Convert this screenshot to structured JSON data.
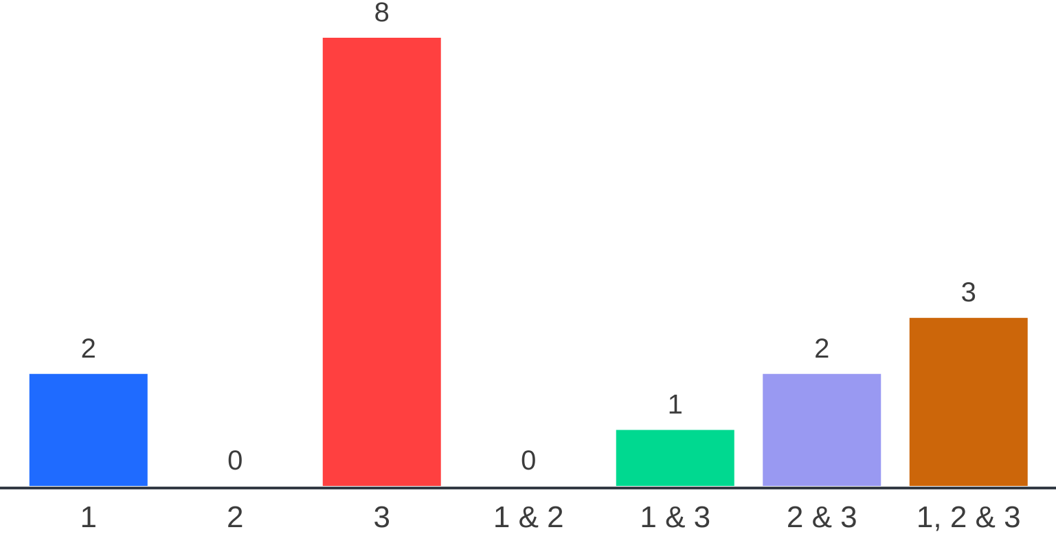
{
  "chart_data": {
    "type": "bar",
    "categories": [
      "1",
      "2",
      "3",
      "1 & 2",
      "1 & 3",
      "2 & 3",
      "1, 2 & 3"
    ],
    "values": [
      2,
      0,
      8,
      0,
      1,
      2,
      3
    ],
    "colors": [
      "#1f6bff",
      "#00b050",
      "#ff4040",
      "#ffbf00",
      "#00d990",
      "#9999f2",
      "#cc660a"
    ],
    "title": "",
    "xlabel": "",
    "ylabel": "",
    "ylim": [
      0,
      8
    ],
    "grid": false,
    "axis_color": "#333a44"
  }
}
